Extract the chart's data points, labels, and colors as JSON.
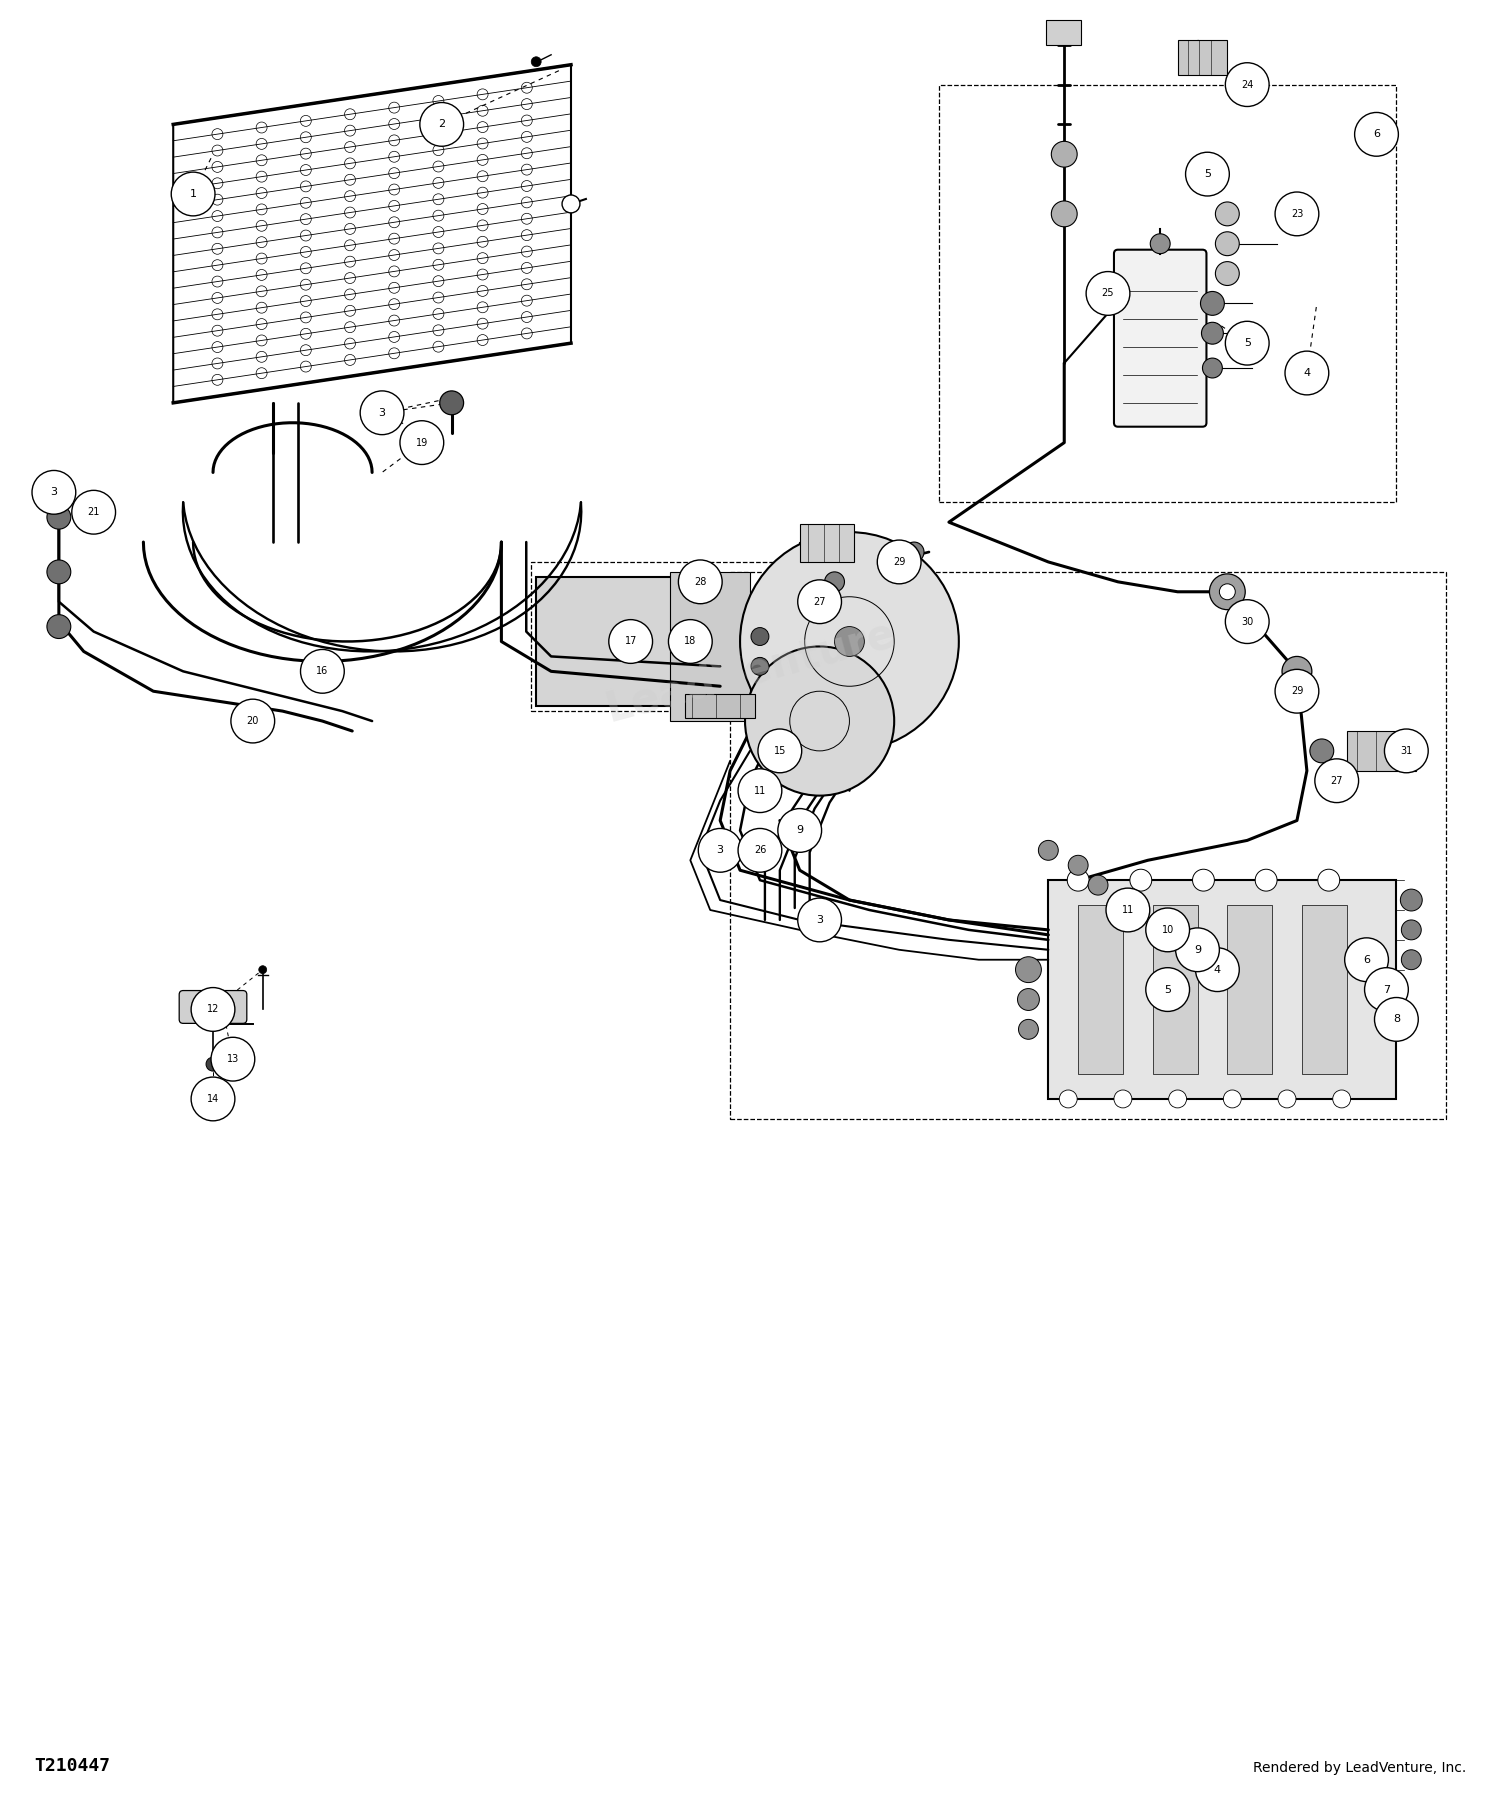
{
  "bg_color": "#ffffff",
  "line_color": "#000000",
  "footer_left": "T210447",
  "footer_right": "Rendered by LeadVenture, Inc.",
  "figsize": [
    15.0,
    18.2
  ],
  "dpi": 100,
  "watermark": "LeadVenture",
  "labels": [
    [
      "1",
      1.9,
      16.3
    ],
    [
      "2",
      4.4,
      17.0
    ],
    [
      "3",
      0.5,
      13.3
    ],
    [
      "3",
      3.8,
      14.1
    ],
    [
      "3",
      7.2,
      9.7
    ],
    [
      "3",
      8.2,
      9.0
    ],
    [
      "4",
      13.1,
      14.5
    ],
    [
      "4",
      12.2,
      8.5
    ],
    [
      "5",
      12.1,
      16.5
    ],
    [
      "5",
      12.5,
      14.8
    ],
    [
      "5",
      11.7,
      8.3
    ],
    [
      "6",
      13.8,
      16.9
    ],
    [
      "6",
      13.7,
      8.6
    ],
    [
      "7",
      13.9,
      8.3
    ],
    [
      "8",
      14.0,
      8.0
    ],
    [
      "9",
      8.0,
      9.9
    ],
    [
      "9",
      12.0,
      8.7
    ],
    [
      "10",
      11.7,
      8.9
    ],
    [
      "11",
      7.6,
      10.3
    ],
    [
      "11",
      11.3,
      9.1
    ],
    [
      "12",
      2.1,
      8.1
    ],
    [
      "13",
      2.3,
      7.6
    ],
    [
      "14",
      2.1,
      7.2
    ],
    [
      "15",
      7.8,
      10.7
    ],
    [
      "16",
      3.2,
      11.5
    ],
    [
      "17",
      6.3,
      11.8
    ],
    [
      "18",
      6.9,
      11.8
    ],
    [
      "19",
      4.2,
      13.8
    ],
    [
      "20",
      2.5,
      11.0
    ],
    [
      "21",
      0.9,
      13.1
    ],
    [
      "23",
      13.0,
      16.1
    ],
    [
      "24",
      12.5,
      17.4
    ],
    [
      "25",
      11.1,
      15.3
    ],
    [
      "26",
      7.6,
      9.7
    ],
    [
      "27",
      8.2,
      12.2
    ],
    [
      "27",
      13.4,
      10.4
    ],
    [
      "28",
      7.0,
      12.4
    ],
    [
      "29",
      9.0,
      12.6
    ],
    [
      "29",
      13.0,
      11.3
    ],
    [
      "30",
      12.5,
      12.0
    ],
    [
      "31",
      14.1,
      10.7
    ]
  ]
}
